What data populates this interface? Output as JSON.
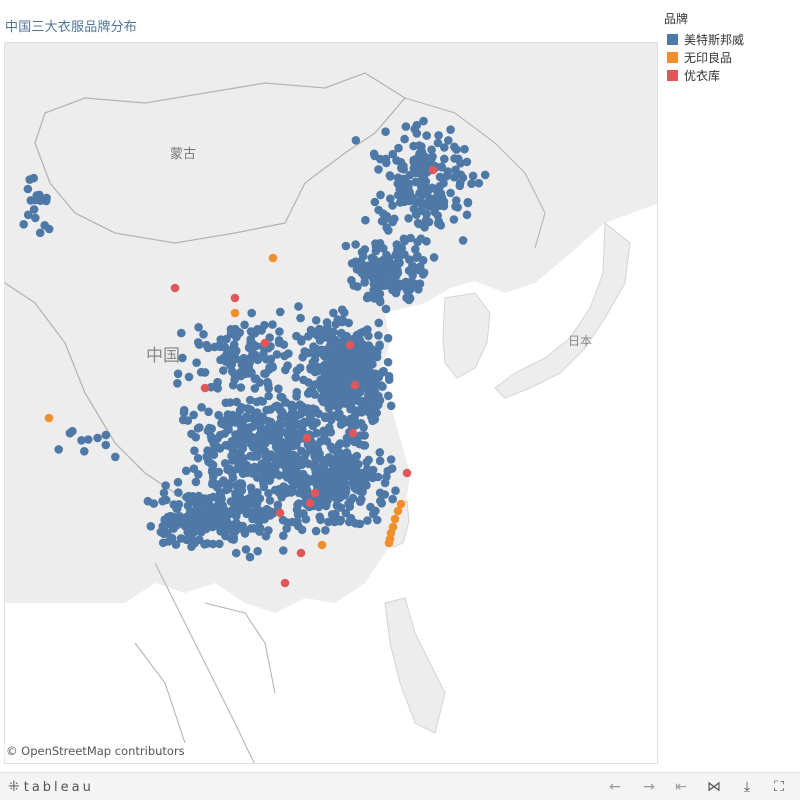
{
  "title": "中国三大衣服品牌分布",
  "legend": {
    "title": "品牌",
    "items": [
      {
        "label": "美特斯邦威",
        "color": "#4e79a7"
      },
      {
        "label": "无印良品",
        "color": "#f28e2b"
      },
      {
        "label": "优衣库",
        "color": "#e15759"
      }
    ]
  },
  "map": {
    "labels": {
      "mongolia": "蒙古",
      "china": "中国",
      "japan": "日本"
    },
    "attribution": "© OpenStreetMap contributors",
    "colors": {
      "land": "#ededed",
      "sea": "#ffffff",
      "border": "#c9c9c9",
      "country_border": "#b5b5b5"
    }
  },
  "toolbar": {
    "logo_text": "tableau",
    "buttons": [
      {
        "name": "undo-icon",
        "glyph": "←"
      },
      {
        "name": "redo-icon",
        "glyph": "→"
      },
      {
        "name": "revert-icon",
        "glyph": "⇤"
      },
      {
        "name": "share-icon",
        "glyph": "⋈"
      },
      {
        "name": "download-icon",
        "glyph": "⤓"
      },
      {
        "name": "fullscreen-icon",
        "glyph": "⛶"
      }
    ]
  }
}
